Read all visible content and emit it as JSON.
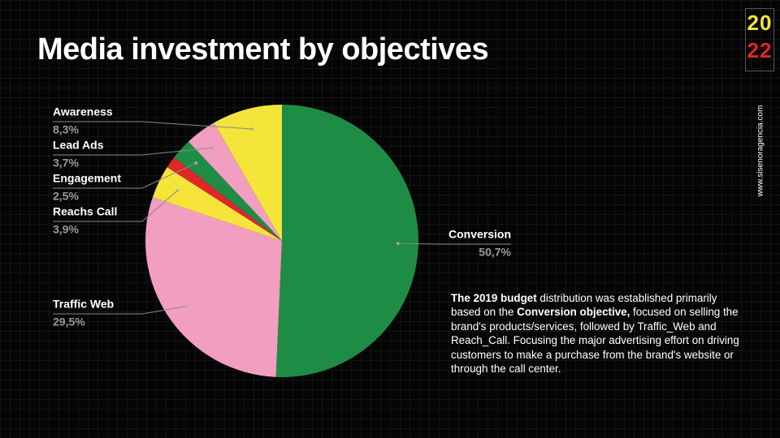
{
  "chart_data": {
    "type": "pie",
    "title": "Media investment by objectives",
    "categories": [
      "Conversion",
      "Traffic Web",
      "Reachs Call",
      null,
      "Engagement",
      "Lead Ads",
      "Awareness"
    ],
    "values": [
      50.7,
      29.5,
      3.9,
      1.4,
      2.5,
      3.7,
      8.3
    ],
    "value_labels": [
      "50,7%",
      "29,5%",
      "3,9%",
      null,
      "2,5%",
      "3,7%",
      "8,3%"
    ],
    "colors": [
      "#1e8c45",
      "#f29ec0",
      "#f5e43a",
      "#e0262b",
      "#1e8c45",
      "#f29ec0",
      "#f5e43a"
    ]
  },
  "note": [
    "The 2019 budget",
    " distribution was established primarily based on the ",
    "Conversion objective,",
    " focused on selling the brand's products/services, followed by Traffic_Web and Reach_Call. Focusing the major advertising effort on driving customers to make a purchase from the brand's website or through the call center."
  ],
  "logo": {
    "top": "20",
    "bottom": "22",
    "url": "www.sisenoragencia.com"
  }
}
